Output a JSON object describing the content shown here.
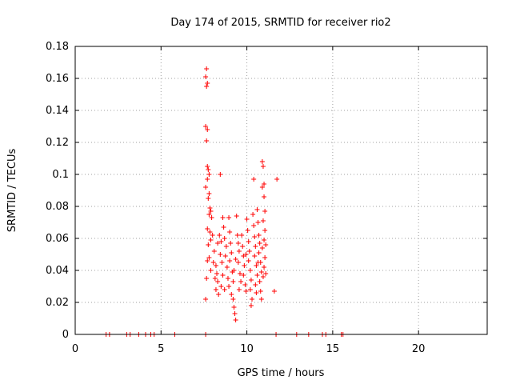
{
  "chart_data": {
    "type": "scatter",
    "title": "Day 174 of 2015, SRMTID for receiver rio2",
    "xlabel": "GPS time / hours",
    "ylabel": "SRMTID / TECUs",
    "xlim": [
      0,
      24
    ],
    "ylim": [
      0,
      0.18
    ],
    "xticks": [
      0,
      5,
      10,
      15,
      20
    ],
    "xtick_labels": [
      "0",
      "5",
      "10",
      "15",
      "20"
    ],
    "yticks": [
      0,
      0.02,
      0.04,
      0.06,
      0.08,
      0.1,
      0.12,
      0.14,
      0.16,
      0.18
    ],
    "ytick_labels": [
      "0",
      "0.02",
      "0.04",
      "0.06",
      "0.08",
      "0.1",
      "0.12",
      "0.14",
      "0.16",
      "0.18"
    ],
    "grid": true,
    "marker": "+",
    "color": "#ff0000",
    "series": [
      {
        "name": "SRMTID",
        "points": [
          [
            1.8,
            0
          ],
          [
            2.0,
            0
          ],
          [
            3.0,
            0
          ],
          [
            3.2,
            0
          ],
          [
            3.7,
            0
          ],
          [
            4.1,
            0
          ],
          [
            4.4,
            0
          ],
          [
            4.6,
            0
          ],
          [
            5.8,
            0
          ],
          [
            7.6,
            0
          ],
          [
            11.7,
            0
          ],
          [
            12.9,
            0
          ],
          [
            13.6,
            0
          ],
          [
            14.4,
            0
          ],
          [
            14.6,
            0
          ],
          [
            15.5,
            0
          ],
          [
            15.6,
            0
          ],
          [
            7.65,
            0.166
          ],
          [
            7.6,
            0.161
          ],
          [
            7.7,
            0.157
          ],
          [
            7.65,
            0.155
          ],
          [
            7.6,
            0.13
          ],
          [
            7.7,
            0.128
          ],
          [
            7.65,
            0.121
          ],
          [
            7.7,
            0.105
          ],
          [
            7.75,
            0.103
          ],
          [
            7.8,
            0.1
          ],
          [
            7.7,
            0.097
          ],
          [
            7.6,
            0.092
          ],
          [
            7.8,
            0.088
          ],
          [
            7.75,
            0.085
          ],
          [
            7.85,
            0.079
          ],
          [
            7.9,
            0.077
          ],
          [
            7.8,
            0.075
          ],
          [
            7.95,
            0.073
          ],
          [
            7.7,
            0.066
          ],
          [
            7.85,
            0.064
          ],
          [
            8.0,
            0.062
          ],
          [
            7.9,
            0.059
          ],
          [
            7.75,
            0.056
          ],
          [
            7.8,
            0.048
          ],
          [
            7.7,
            0.046
          ],
          [
            7.65,
            0.035
          ],
          [
            7.6,
            0.022
          ],
          [
            7.9,
            0.04
          ],
          [
            8.1,
            0.052
          ],
          [
            8.2,
            0.043
          ],
          [
            8.25,
            0.038
          ],
          [
            8.3,
            0.033
          ],
          [
            8.2,
            0.028
          ],
          [
            8.35,
            0.025
          ],
          [
            8.4,
            0.062
          ],
          [
            8.5,
            0.058
          ],
          [
            8.45,
            0.05
          ],
          [
            8.55,
            0.045
          ],
          [
            8.6,
            0.037
          ],
          [
            8.5,
            0.03
          ],
          [
            8.45,
            0.1
          ],
          [
            8.6,
            0.073
          ],
          [
            8.65,
            0.067
          ],
          [
            8.7,
            0.06
          ],
          [
            8.8,
            0.055
          ],
          [
            8.75,
            0.049
          ],
          [
            8.85,
            0.042
          ],
          [
            8.9,
            0.035
          ],
          [
            8.7,
            0.028
          ],
          [
            8.95,
            0.073
          ],
          [
            9.0,
            0.064
          ],
          [
            9.05,
            0.057
          ],
          [
            9.1,
            0.051
          ],
          [
            9.0,
            0.046
          ],
          [
            9.15,
            0.039
          ],
          [
            9.2,
            0.033
          ],
          [
            9.1,
            0.025
          ],
          [
            9.2,
            0.022
          ],
          [
            9.25,
            0.017
          ],
          [
            9.3,
            0.013
          ],
          [
            9.35,
            0.009
          ],
          [
            9.4,
            0.074
          ],
          [
            9.45,
            0.062
          ],
          [
            9.5,
            0.057
          ],
          [
            9.55,
            0.052
          ],
          [
            9.5,
            0.045
          ],
          [
            9.6,
            0.038
          ],
          [
            9.65,
            0.033
          ],
          [
            9.55,
            0.028
          ],
          [
            9.7,
            0.062
          ],
          [
            9.75,
            0.055
          ],
          [
            9.8,
            0.049
          ],
          [
            9.85,
            0.043
          ],
          [
            9.8,
            0.037
          ],
          [
            9.9,
            0.031
          ],
          [
            9.95,
            0.027
          ],
          [
            10.0,
            0.072
          ],
          [
            10.05,
            0.065
          ],
          [
            10.1,
            0.058
          ],
          [
            10.15,
            0.052
          ],
          [
            10.1,
            0.046
          ],
          [
            10.2,
            0.04
          ],
          [
            10.25,
            0.034
          ],
          [
            10.2,
            0.028
          ],
          [
            10.3,
            0.022
          ],
          [
            10.25,
            0.018
          ],
          [
            10.35,
            0.075
          ],
          [
            10.4,
            0.068
          ],
          [
            10.45,
            0.061
          ],
          [
            10.5,
            0.055
          ],
          [
            10.45,
            0.049
          ],
          [
            10.55,
            0.043
          ],
          [
            10.6,
            0.037
          ],
          [
            10.5,
            0.031
          ],
          [
            10.55,
            0.026
          ],
          [
            10.4,
            0.097
          ],
          [
            10.6,
            0.078
          ],
          [
            10.65,
            0.07
          ],
          [
            10.7,
            0.062
          ],
          [
            10.75,
            0.057
          ],
          [
            10.7,
            0.051
          ],
          [
            10.8,
            0.045
          ],
          [
            10.85,
            0.039
          ],
          [
            10.75,
            0.033
          ],
          [
            10.8,
            0.027
          ],
          [
            10.85,
            0.022
          ],
          [
            10.9,
            0.108
          ],
          [
            10.95,
            0.105
          ],
          [
            11.0,
            0.094
          ],
          [
            10.9,
            0.092
          ],
          [
            11.0,
            0.086
          ],
          [
            11.05,
            0.077
          ],
          [
            10.95,
            0.071
          ],
          [
            11.05,
            0.065
          ],
          [
            11.0,
            0.059
          ],
          [
            10.9,
            0.054
          ],
          [
            11.05,
            0.048
          ],
          [
            11.0,
            0.042
          ],
          [
            10.95,
            0.036
          ],
          [
            11.1,
            0.056
          ],
          [
            11.1,
            0.038
          ],
          [
            11.6,
            0.027
          ],
          [
            11.75,
            0.097
          ],
          [
            8.3,
            0.057
          ],
          [
            8.15,
            0.035
          ],
          [
            8.05,
            0.045
          ],
          [
            9.35,
            0.047
          ],
          [
            9.95,
            0.05
          ],
          [
            10.65,
            0.045
          ],
          [
            8.95,
            0.03
          ],
          [
            9.25,
            0.04
          ]
        ]
      }
    ]
  }
}
